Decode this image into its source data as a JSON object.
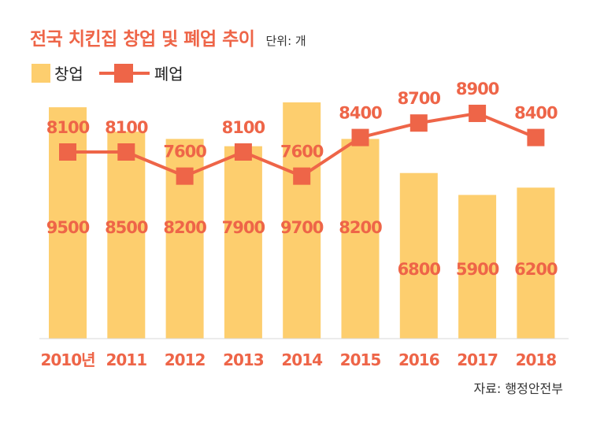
{
  "title": "전국 치킨집 창업 및 폐업 추이",
  "unit": "단위: 개",
  "source": "자료: 행정안전부",
  "colors": {
    "bar": "#FDCE6E",
    "line": "#EE6548",
    "title": "#EE6548",
    "label": "#EE6548"
  },
  "chart_data": {
    "type": "bar",
    "categories": [
      "2010년",
      "2011",
      "2012",
      "2013",
      "2014",
      "2015",
      "2016",
      "2017",
      "2018"
    ],
    "series": [
      {
        "name": "창업",
        "type": "bar",
        "values": [
          9500,
          8500,
          8200,
          7900,
          9700,
          8200,
          6800,
          5900,
          6200
        ]
      },
      {
        "name": "폐업",
        "type": "line",
        "values": [
          8100,
          8100,
          7600,
          8100,
          7600,
          8400,
          8700,
          8900,
          8400
        ]
      }
    ],
    "legend": "top-left",
    "grid": false
  }
}
